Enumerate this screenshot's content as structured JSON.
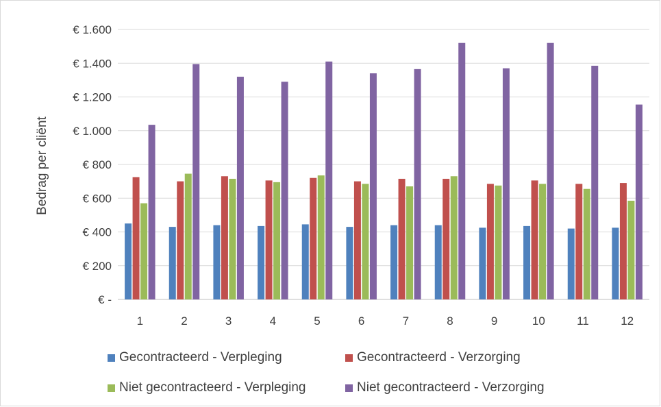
{
  "chart_data": {
    "type": "bar",
    "ylabel": "Bedrag per cliënt",
    "xlabel": "",
    "categories": [
      "1",
      "2",
      "3",
      "4",
      "5",
      "6",
      "7",
      "8",
      "9",
      "10",
      "11",
      "12"
    ],
    "ylim": [
      0,
      1600
    ],
    "y_ticks": [
      {
        "value": 0,
        "label": "€ -"
      },
      {
        "value": 200,
        "label": "€ 200"
      },
      {
        "value": 400,
        "label": "€ 400"
      },
      {
        "value": 600,
        "label": "€ 600"
      },
      {
        "value": 800,
        "label": "€ 800"
      },
      {
        "value": 1000,
        "label": "€ 1.000"
      },
      {
        "value": 1200,
        "label": "€ 1.200"
      },
      {
        "value": 1400,
        "label": "€ 1.400"
      },
      {
        "value": 1600,
        "label": "€ 1.600"
      }
    ],
    "grid": true,
    "legend_position": "bottom",
    "series": [
      {
        "name": "Gecontracteerd - Verpleging",
        "color": "#4f81bd",
        "values": [
          450,
          430,
          440,
          435,
          445,
          430,
          440,
          440,
          425,
          435,
          420,
          425
        ]
      },
      {
        "name": "Gecontracteerd - Verzorging",
        "color": "#c0504d",
        "values": [
          725,
          700,
          730,
          705,
          720,
          700,
          715,
          715,
          685,
          705,
          685,
          690
        ]
      },
      {
        "name": "Niet gecontracteerd - Verpleging",
        "color": "#9bbb59",
        "values": [
          570,
          745,
          715,
          695,
          735,
          685,
          670,
          730,
          675,
          685,
          655,
          585
        ]
      },
      {
        "name": "Niet gecontracteerd - Verzorging",
        "color": "#8064a2",
        "values": [
          1035,
          1395,
          1320,
          1290,
          1410,
          1340,
          1365,
          1520,
          1370,
          1520,
          1385,
          1155
        ]
      }
    ]
  }
}
